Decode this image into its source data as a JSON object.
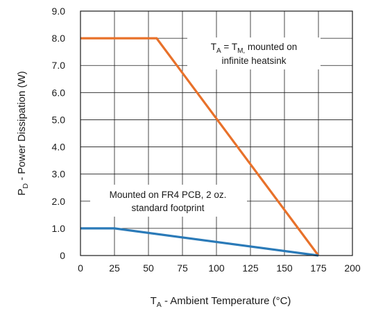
{
  "chart_data": {
    "type": "line",
    "xlabel_main": "T",
    "xlabel_sub": "A",
    "xlabel_rest": " - Ambient Temperature (°C)",
    "ylabel_main": "P",
    "ylabel_sub": "D",
    "ylabel_rest": " - Power Dissipation  (W)",
    "xlim": [
      0,
      200
    ],
    "ylim": [
      0,
      9
    ],
    "xticks": [
      "0",
      "25",
      "50",
      "75",
      "100",
      "125",
      "150",
      "175",
      "200"
    ],
    "yticks": [
      "0",
      "1.0",
      "2.0",
      "3.0",
      "4.0",
      "5.0",
      "6.0",
      "7.0",
      "8.0",
      "9.0"
    ],
    "grid": true,
    "series": [
      {
        "color": "#E8712A",
        "x": [
          0,
          56,
          175
        ],
        "y": [
          8.0,
          8.0,
          0
        ]
      },
      {
        "color": "#2A7AB8",
        "x": [
          0,
          25,
          175
        ],
        "y": [
          1.0,
          1.0,
          0
        ]
      }
    ],
    "annotations": {
      "heatsink": {
        "t": "T",
        "t_sub": "A",
        "eq": " = T",
        "eq_sub": "M,",
        "rest": " mounted on",
        "line2": "infinite heatsink"
      },
      "pcb": {
        "line1": "Mounted on FR4 PCB, 2 oz.",
        "line2": "standard footprint"
      }
    }
  }
}
